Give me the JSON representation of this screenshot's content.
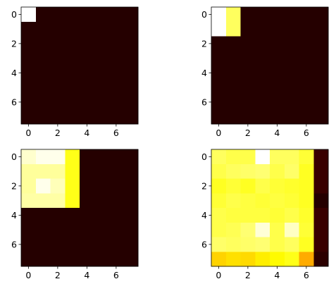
{
  "chart_data": [
    {
      "type": "heatmap",
      "colormap": "hot",
      "xticks": [
        "0",
        "2",
        "4",
        "6"
      ],
      "yticks": [
        "0",
        "2",
        "4",
        "6"
      ],
      "xlim": [
        -0.5,
        7.5
      ],
      "ylim": [
        7.5,
        -0.5
      ],
      "values": [
        [
          1.0,
          0.04,
          0.04,
          0.04,
          0.04,
          0.04,
          0.04,
          0.04
        ],
        [
          0.04,
          0.04,
          0.04,
          0.04,
          0.04,
          0.04,
          0.04,
          0.04
        ],
        [
          0.04,
          0.04,
          0.04,
          0.04,
          0.04,
          0.04,
          0.04,
          0.04
        ],
        [
          0.04,
          0.04,
          0.04,
          0.04,
          0.04,
          0.04,
          0.04,
          0.04
        ],
        [
          0.04,
          0.04,
          0.04,
          0.04,
          0.04,
          0.04,
          0.04,
          0.04
        ],
        [
          0.04,
          0.04,
          0.04,
          0.04,
          0.04,
          0.04,
          0.04,
          0.04
        ],
        [
          0.04,
          0.04,
          0.04,
          0.04,
          0.04,
          0.04,
          0.04,
          0.04
        ],
        [
          0.04,
          0.04,
          0.04,
          0.04,
          0.04,
          0.04,
          0.04,
          0.04
        ]
      ]
    },
    {
      "type": "heatmap",
      "colormap": "hot",
      "xticks": [
        "0",
        "2",
        "4",
        "6"
      ],
      "yticks": [
        "0",
        "2",
        "4",
        "6"
      ],
      "xlim": [
        -0.5,
        7.5
      ],
      "ylim": [
        7.5,
        -0.5
      ],
      "values": [
        [
          1.0,
          0.84,
          0.04,
          0.04,
          0.04,
          0.04,
          0.04,
          0.04
        ],
        [
          1.0,
          0.84,
          0.04,
          0.04,
          0.04,
          0.04,
          0.04,
          0.04
        ],
        [
          0.04,
          0.04,
          0.04,
          0.04,
          0.04,
          0.04,
          0.04,
          0.04
        ],
        [
          0.04,
          0.04,
          0.04,
          0.04,
          0.04,
          0.04,
          0.04,
          0.04
        ],
        [
          0.04,
          0.04,
          0.04,
          0.04,
          0.04,
          0.04,
          0.04,
          0.04
        ],
        [
          0.04,
          0.04,
          0.04,
          0.04,
          0.04,
          0.04,
          0.04,
          0.04
        ],
        [
          0.04,
          0.04,
          0.04,
          0.04,
          0.04,
          0.04,
          0.04,
          0.04
        ],
        [
          0.04,
          0.04,
          0.04,
          0.04,
          0.04,
          0.04,
          0.04,
          0.04
        ]
      ]
    },
    {
      "type": "heatmap",
      "colormap": "hot",
      "xticks": [
        "0",
        "2",
        "4",
        "6"
      ],
      "yticks": [
        "0",
        "2",
        "4",
        "6"
      ],
      "xlim": [
        -0.5,
        7.5
      ],
      "ylim": [
        7.5,
        -0.5
      ],
      "values": [
        [
          0.95,
          0.98,
          0.98,
          0.77,
          0.04,
          0.04,
          0.04,
          0.04
        ],
        [
          0.9,
          0.9,
          0.9,
          0.77,
          0.04,
          0.04,
          0.04,
          0.04
        ],
        [
          0.9,
          0.98,
          0.93,
          0.77,
          0.04,
          0.04,
          0.04,
          0.04
        ],
        [
          0.91,
          0.91,
          0.91,
          0.77,
          0.04,
          0.04,
          0.04,
          0.04
        ],
        [
          0.04,
          0.04,
          0.04,
          0.04,
          0.04,
          0.04,
          0.04,
          0.04
        ],
        [
          0.04,
          0.04,
          0.04,
          0.04,
          0.04,
          0.04,
          0.04,
          0.04
        ],
        [
          0.04,
          0.04,
          0.04,
          0.04,
          0.04,
          0.04,
          0.04,
          0.04
        ],
        [
          0.04,
          0.04,
          0.04,
          0.04,
          0.04,
          0.04,
          0.04,
          0.04
        ]
      ]
    },
    {
      "type": "heatmap",
      "colormap": "hot",
      "xticks": [
        "0",
        "2",
        "4",
        "6"
      ],
      "yticks": [
        "0",
        "2",
        "4",
        "6"
      ],
      "xlim": [
        -0.5,
        7.5
      ],
      "ylim": [
        7.5,
        -0.5
      ],
      "values": [
        [
          0.84,
          0.82,
          0.82,
          1.0,
          0.84,
          0.84,
          0.8,
          0.07
        ],
        [
          0.82,
          0.84,
          0.85,
          0.86,
          0.82,
          0.85,
          0.78,
          0.07
        ],
        [
          0.78,
          0.8,
          0.78,
          0.82,
          0.8,
          0.79,
          0.78,
          0.07
        ],
        [
          0.8,
          0.82,
          0.81,
          0.8,
          0.81,
          0.8,
          0.78,
          0.04
        ],
        [
          0.82,
          0.81,
          0.81,
          0.81,
          0.8,
          0.82,
          0.79,
          0.07
        ],
        [
          0.82,
          0.83,
          0.86,
          0.96,
          0.82,
          0.94,
          0.8,
          0.07
        ],
        [
          0.85,
          0.84,
          0.85,
          0.86,
          0.82,
          0.84,
          0.78,
          0.07
        ],
        [
          0.68,
          0.7,
          0.69,
          0.72,
          0.74,
          0.77,
          0.62,
          0.05
        ]
      ]
    }
  ]
}
